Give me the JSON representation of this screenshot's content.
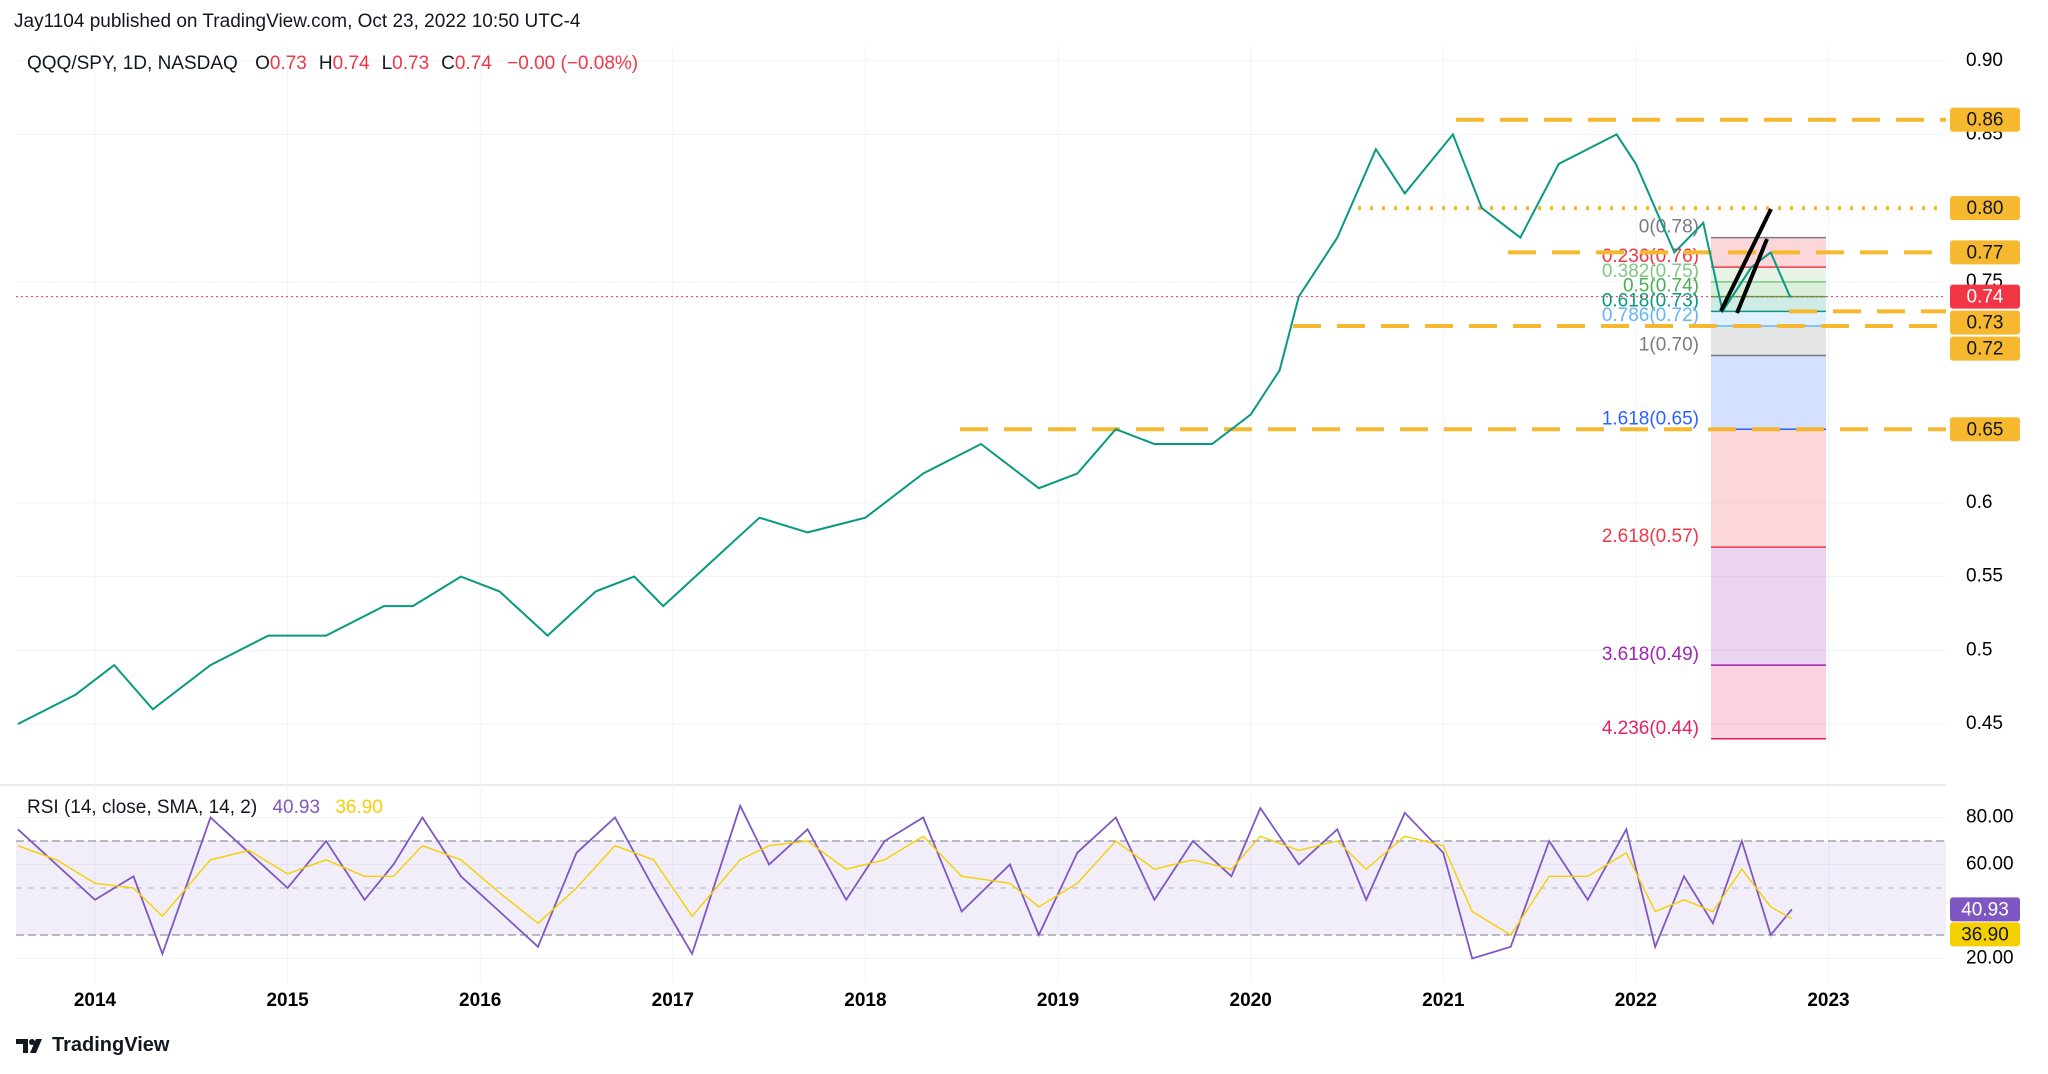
{
  "header": {
    "text": "Jay1104 published on TradingView.com, Oct 23, 2022 10:50 UTC-4"
  },
  "footer": {
    "brand": "TradingView"
  },
  "chart_data": [
    {
      "type": "line",
      "title": "QQQ/SPY, 1D, NASDAQ",
      "ohlc": [
        {
          "key": "O",
          "value": 0.73
        },
        {
          "key": "H",
          "value": 0.74
        },
        {
          "key": "L",
          "value": 0.73
        },
        {
          "key": "C",
          "value": 0.74
        }
      ],
      "change": "−0.00 (−0.08%)",
      "color": "#089981",
      "x": [
        2013.6,
        2013.9,
        2014.1,
        2014.3,
        2014.6,
        2014.9,
        2015.2,
        2015.5,
        2015.65,
        2015.9,
        2016.1,
        2016.35,
        2016.6,
        2016.8,
        2016.95,
        2017.2,
        2017.45,
        2017.7,
        2018.0,
        2018.3,
        2018.6,
        2018.9,
        2019.1,
        2019.3,
        2019.5,
        2019.8,
        2020.0,
        2020.15,
        2020.25,
        2020.45,
        2020.65,
        2020.8,
        2021.05,
        2021.2,
        2021.4,
        2021.6,
        2021.9,
        2022.0,
        2022.2,
        2022.35,
        2022.45,
        2022.6,
        2022.7,
        2022.8,
        2022.81
      ],
      "values": [
        0.45,
        0.47,
        0.49,
        0.46,
        0.49,
        0.51,
        0.51,
        0.53,
        0.53,
        0.55,
        0.54,
        0.51,
        0.54,
        0.55,
        0.53,
        0.56,
        0.59,
        0.58,
        0.59,
        0.62,
        0.64,
        0.61,
        0.62,
        0.65,
        0.64,
        0.64,
        0.66,
        0.69,
        0.74,
        0.78,
        0.84,
        0.81,
        0.85,
        0.8,
        0.78,
        0.83,
        0.85,
        0.83,
        0.77,
        0.79,
        0.73,
        0.76,
        0.77,
        0.74,
        0.74
      ],
      "xlim": [
        2013.59,
        2023.61
      ],
      "ylim": [
        0.41,
        0.91
      ],
      "yticks": [
        {
          "value": 0.9,
          "label": "0.90"
        },
        0.85,
        0.75,
        0.6,
        0.55,
        0.5,
        0.45
      ],
      "levels": [
        {
          "value": 0.86,
          "label": "0.86",
          "style": "dashed"
        },
        {
          "value": 0.8,
          "label": "0.80",
          "style": "dotted"
        },
        {
          "value": 0.77,
          "label": "0.77",
          "style": "dashed"
        },
        {
          "value": 0.73,
          "label": "0.73",
          "style": "dashed"
        },
        {
          "value": 0.72,
          "label": "0.72",
          "style": "dashed"
        },
        {
          "value": 0.65,
          "label": "0.65",
          "style": "dashed"
        }
      ],
      "level_color": "#f5b82e",
      "last": {
        "value": 0.74,
        "label": "0.74",
        "color": "#f23645"
      },
      "fib": [
        {
          "value": 0.78,
          "label": "0(0.78)",
          "color": "#787b86"
        },
        {
          "value": 0.76,
          "label": "0.236(0.76)",
          "color": "#f23645"
        },
        {
          "value": 0.75,
          "label": "0.382(0.75)",
          "color": "#81c784"
        },
        {
          "value": 0.74,
          "label": "0.5(0.74)",
          "color": "#4caf50"
        },
        {
          "value": 0.73,
          "label": "0.618(0.73)",
          "color": "#089981"
        },
        {
          "value": 0.72,
          "label": "0.786(0.72)",
          "color": "#64b5f6"
        },
        {
          "value": 0.7,
          "label": "1(0.70)",
          "color": "#787b86"
        },
        {
          "value": 1.618,
          "label": "1.618(0.65)",
          "color": "#2962ff",
          "price": 0.65
        },
        {
          "value": 2.618,
          "label": "2.618(0.57)",
          "color": "#f23645",
          "price": 0.57
        },
        {
          "value": 3.618,
          "label": "3.618(0.49)",
          "color": "#9c27b0",
          "price": 0.49
        },
        {
          "value": 4.236,
          "label": "4.236(0.44)",
          "color": "#e91e63",
          "price": 0.44
        }
      ]
    },
    {
      "type": "line",
      "title": "RSI (14, close, SMA, 14, 2)",
      "legend_values": [
        "40.93",
        "36.90"
      ],
      "x": [
        2013.6,
        2013.8,
        2014.0,
        2014.2,
        2014.35,
        2014.6,
        2014.8,
        2015.0,
        2015.2,
        2015.4,
        2015.55,
        2015.7,
        2015.9,
        2016.1,
        2016.3,
        2016.5,
        2016.7,
        2016.9,
        2017.1,
        2017.35,
        2017.5,
        2017.7,
        2017.9,
        2018.1,
        2018.3,
        2018.5,
        2018.75,
        2018.9,
        2019.1,
        2019.3,
        2019.5,
        2019.7,
        2019.9,
        2020.05,
        2020.25,
        2020.45,
        2020.6,
        2020.8,
        2021.0,
        2021.15,
        2021.35,
        2021.55,
        2021.75,
        2021.95,
        2022.1,
        2022.25,
        2022.4,
        2022.55,
        2022.7,
        2022.81
      ],
      "series": [
        {
          "color": "#7e57c2",
          "text_color": "#ffffff",
          "values": [
            75,
            60,
            45,
            55,
            22,
            80,
            65,
            50,
            70,
            45,
            60,
            80,
            55,
            40,
            25,
            65,
            80,
            50,
            22,
            85,
            60,
            75,
            45,
            70,
            80,
            40,
            60,
            30,
            65,
            80,
            45,
            70,
            55,
            84,
            60,
            75,
            45,
            82,
            65,
            20,
            25,
            70,
            45,
            75,
            25,
            55,
            35,
            70,
            30,
            40.93
          ]
        },
        {
          "color": "#f5d000",
          "text_color": "#131722",
          "values": [
            68,
            62,
            52,
            50,
            38,
            62,
            66,
            56,
            62,
            55,
            55,
            68,
            62,
            48,
            35,
            50,
            68,
            62,
            38,
            62,
            68,
            70,
            58,
            62,
            72,
            55,
            52,
            42,
            52,
            70,
            58,
            62,
            58,
            72,
            66,
            70,
            58,
            72,
            68,
            40,
            30,
            55,
            55,
            65,
            40,
            45,
            40,
            58,
            42,
            36.9
          ]
        }
      ],
      "bands": [
        70,
        50,
        30
      ],
      "xlim": [
        2013.59,
        2023.61
      ],
      "ylim": [
        10,
        93
      ],
      "yticks": [
        {
          "value": 80,
          "label": "80.00"
        },
        {
          "value": 60,
          "label": "60.00"
        },
        {
          "value": 20,
          "label": "20.00"
        }
      ],
      "xticks": [
        2014,
        2015,
        2016,
        2017,
        2018,
        2019,
        2020,
        2021,
        2022,
        2023
      ]
    }
  ]
}
